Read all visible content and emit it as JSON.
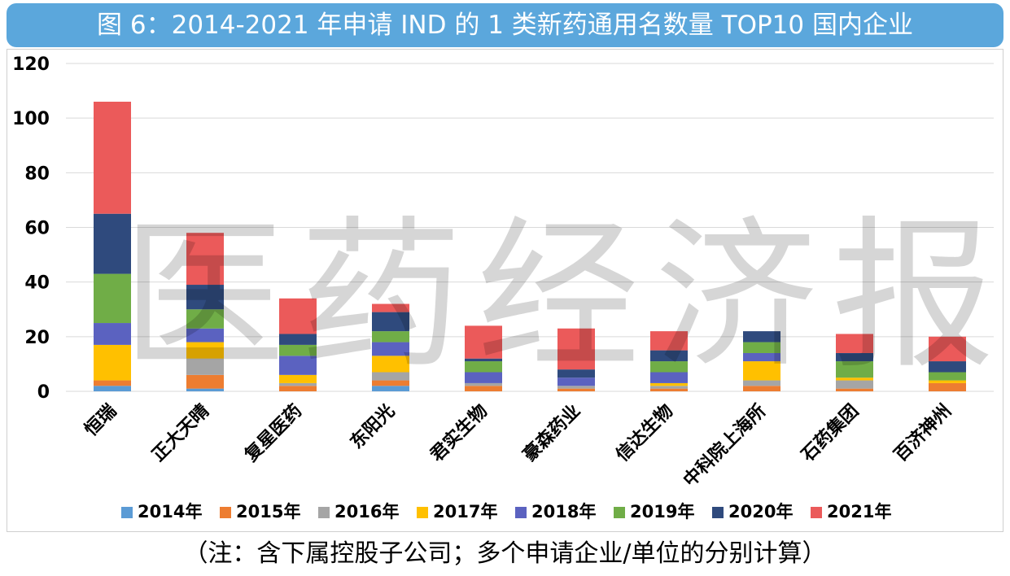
{
  "title": "图 6：2014-2021 年申请 IND 的 1 类新药通用名数量 TOP10 国内企业",
  "footnote": "（注：含下属控股子公司；多个申请企业/单位的分别计算）",
  "watermark": "医药经济报",
  "colors": {
    "title_bg": "#5ba7dc",
    "grid": "#d9d9d9",
    "axis_text": "#000000"
  },
  "chart_data": {
    "type": "bar",
    "stacked": true,
    "categories": [
      "恒瑞",
      "正大天晴",
      "复星医药",
      "东阳光",
      "君实生物",
      "豪森药业",
      "信达生物",
      "中科院上海所",
      "石药集团",
      "百济神州"
    ],
    "ylim": [
      0,
      120
    ],
    "yticks": [
      0,
      20,
      40,
      60,
      80,
      100,
      120
    ],
    "grid": true,
    "legend_position": "bottom",
    "series": [
      {
        "name": "2014年",
        "color": "#5b9bd5",
        "values": [
          2,
          1,
          0,
          2,
          0,
          0,
          0,
          0,
          0,
          0
        ]
      },
      {
        "name": "2015年",
        "color": "#ed7d31",
        "values": [
          2,
          5,
          2,
          2,
          2,
          1,
          1,
          2,
          1,
          3
        ]
      },
      {
        "name": "2016年",
        "color": "#a5a5a5",
        "values": [
          0,
          6,
          1,
          3,
          1,
          1,
          1,
          2,
          3,
          0
        ]
      },
      {
        "name": "2017年",
        "color": "#ffc000",
        "values": [
          13,
          6,
          3,
          6,
          0,
          0,
          1,
          7,
          1,
          1
        ]
      },
      {
        "name": "2018年",
        "color": "#5b62c0",
        "values": [
          8,
          5,
          7,
          5,
          4,
          3,
          4,
          3,
          0,
          0
        ]
      },
      {
        "name": "2019年",
        "color": "#70ad47",
        "values": [
          18,
          7,
          4,
          4,
          4,
          0,
          4,
          4,
          6,
          3
        ]
      },
      {
        "name": "2020年",
        "color": "#2f4a7d",
        "values": [
          22,
          9,
          4,
          7,
          1,
          3,
          4,
          4,
          3,
          4
        ]
      },
      {
        "name": "2021年",
        "color": "#eb5a5a",
        "values": [
          41,
          19,
          13,
          3,
          12,
          15,
          7,
          0,
          7,
          9
        ]
      }
    ]
  }
}
